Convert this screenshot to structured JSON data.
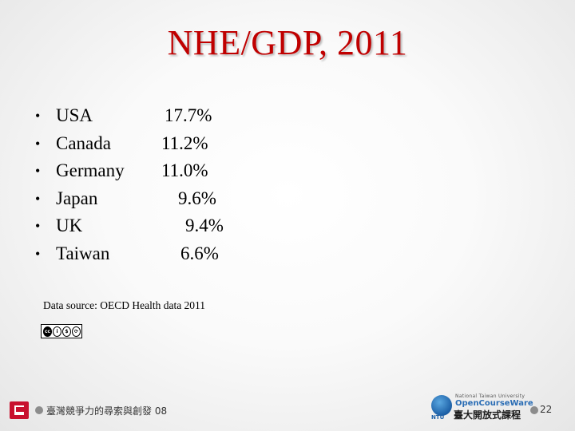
{
  "slide": {
    "title": "NHE/GDP, 2011",
    "bullet_glyph": "•",
    "items": [
      {
        "country": "USA",
        "value": "17.7%"
      },
      {
        "country": "Canada",
        "value": "11.2%"
      },
      {
        "country": "Germany",
        "value": "11.0%"
      },
      {
        "country": "Japan",
        "value": "9.6%"
      },
      {
        "country": "UK",
        "value": "9.4%"
      },
      {
        "country": "Taiwan",
        "value": "6.6%"
      }
    ],
    "source": "Data source: OECD Health data 2011",
    "license_icon": "creative-commons-by-nc-sa-icon",
    "title_color": "#c00000"
  },
  "footer": {
    "left_text": "臺灣競爭力的尋索與創發 08",
    "ntu_line1": "National Taiwan University",
    "ntu_line2": "OpenCourseWare",
    "ntu_line3": "臺大開放式課程",
    "ntu_tag": "NTU",
    "page_number": "22",
    "accent_color": "#8c8c8c"
  }
}
